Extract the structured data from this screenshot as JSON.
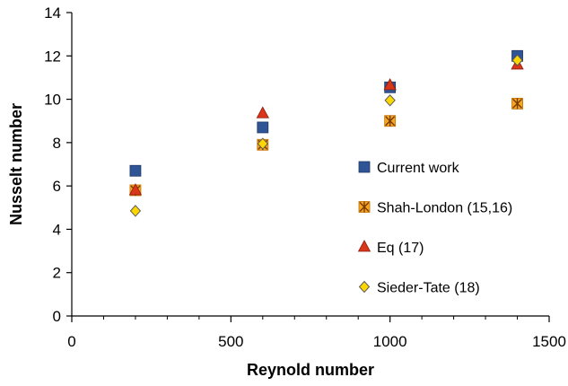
{
  "chart_data": {
    "type": "scatter",
    "xlabel": "Reynold number",
    "ylabel": "Nusselt number",
    "xlim": [
      0,
      1500
    ],
    "ylim": [
      0,
      14
    ],
    "x_ticks": [
      "0",
      "500",
      "1000",
      "1500"
    ],
    "y_ticks": [
      "0",
      "2",
      "4",
      "6",
      "8",
      "10",
      "12",
      "14"
    ],
    "grid": false,
    "legend_position": "right-center",
    "series": [
      {
        "name": "Current work",
        "marker": "square",
        "color": "#2F5597",
        "points": [
          [
            200,
            6.7
          ],
          [
            600,
            8.7
          ],
          [
            1000,
            10.55
          ],
          [
            1400,
            12.0
          ]
        ]
      },
      {
        "name": "Shah-London (15,16)",
        "marker": "star-square",
        "color": "#F5A623",
        "points": [
          [
            200,
            5.8
          ],
          [
            600,
            7.9
          ],
          [
            1000,
            9.0
          ],
          [
            1400,
            9.8
          ]
        ]
      },
      {
        "name": "Eq (17)",
        "marker": "triangle",
        "color": "#D9361A",
        "points": [
          [
            200,
            5.8
          ],
          [
            600,
            9.35
          ],
          [
            1000,
            10.65
          ],
          [
            1400,
            11.6
          ]
        ]
      },
      {
        "name": "Sieder-Tate (18)",
        "marker": "diamond",
        "color": "#FFD700",
        "points": [
          [
            200,
            4.85
          ],
          [
            600,
            7.95
          ],
          [
            1000,
            9.95
          ],
          [
            1400,
            11.8
          ]
        ]
      }
    ]
  }
}
